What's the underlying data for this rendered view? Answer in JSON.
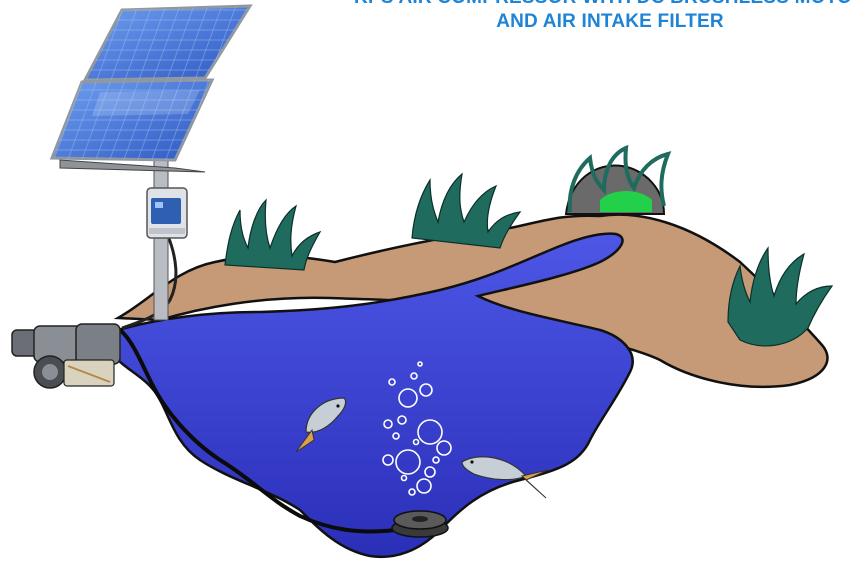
{
  "caption": {
    "line1": "KPS AIR COMPRESSOR WITH DC BRUSHLESS MOTOR",
    "line2": "AND AIR INTAKE FILTER"
  },
  "colors": {
    "caption": "#1f84d6",
    "water": "#3b3fd8",
    "soil": "#c69a76",
    "grass": "#1f6b5e",
    "solar_panel": "#3f6fd0"
  },
  "icons": [
    "solar-panel-icon",
    "controller-box-icon",
    "air-compressor-icon",
    "fish-icon",
    "diffuser-icon",
    "bubbles-icon",
    "grass-icon",
    "rock-icon"
  ]
}
